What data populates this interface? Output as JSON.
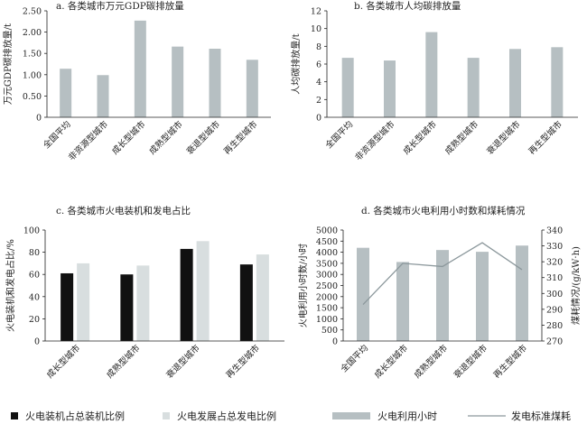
{
  "colors": {
    "bar_gray": "#b6bfc2",
    "bar_black": "#111111",
    "bar_light": "#d8dedf",
    "line_gray": "#8c989c",
    "axis": "#222222"
  },
  "legend": {
    "items": [
      {
        "label": "火电装机占总装机比例",
        "swatch": "black-square"
      },
      {
        "label": "火电发展占总发电比例",
        "swatch": "light-square"
      },
      {
        "label": "火电利用小时",
        "swatch": "gray-rect"
      },
      {
        "label": "发电标准煤耗",
        "swatch": "line"
      }
    ]
  },
  "chart_data": [
    {
      "type": "bar",
      "title": "a. 各类城市万元GDP碳排放量",
      "xlabel": "",
      "ylabel": "万元GDP碳排放量/t",
      "categories": [
        "全国平均",
        "非资源型城市",
        "成长型城市",
        "成熟型城市",
        "衰退型城市",
        "再生型城市"
      ],
      "values": [
        1.14,
        0.99,
        2.27,
        1.66,
        1.61,
        1.35
      ],
      "ylim": [
        0,
        2.5
      ],
      "yticks": [
        "0",
        "0.50",
        "1.00",
        "1.50",
        "2.00",
        "2.50"
      ]
    },
    {
      "type": "bar",
      "title": "b. 各类城市人均碳排放量",
      "xlabel": "",
      "ylabel": "人均碳排放量/t",
      "categories": [
        "全国平均",
        "非资源型城市",
        "成长型城市",
        "成熟型城市",
        "衰退型城市",
        "再生型城市"
      ],
      "values": [
        6.7,
        6.4,
        9.6,
        6.7,
        7.7,
        7.9
      ],
      "ylim": [
        0,
        12
      ],
      "yticks": [
        "0",
        "2",
        "4",
        "6",
        "8",
        "10",
        "12"
      ]
    },
    {
      "type": "bar",
      "title": "c. 各类城市火电装机和发电占比",
      "xlabel": "",
      "ylabel": "火电装机和发电占比/%",
      "categories": [
        "成长型城市",
        "成熟型城市",
        "衰退型城市",
        "再生型城市"
      ],
      "series": [
        {
          "name": "火电装机占总装机比例",
          "values": [
            61,
            60,
            83,
            69
          ]
        },
        {
          "name": "火电发展占总发电比例",
          "values": [
            70,
            68,
            90,
            78
          ]
        }
      ],
      "ylim": [
        0,
        100
      ],
      "yticks": [
        "0",
        "20",
        "40",
        "60",
        "80",
        "100"
      ]
    },
    {
      "type": "bar",
      "title": "d. 各类城市火电利用小时数和煤耗情况",
      "xlabel": "",
      "ylabel": "火电利用小时数/小时",
      "y2label": "煤耗情况/(g/kW·h)",
      "categories": [
        "全国平均",
        "成长型城市",
        "成熟型城市",
        "衰退型城市",
        "再生型城市"
      ],
      "series": [
        {
          "name": "火电利用小时",
          "type": "bar",
          "axis": "left",
          "values": [
            4200,
            3560,
            4100,
            4020,
            4300
          ]
        },
        {
          "name": "发电标准煤耗",
          "type": "line",
          "axis": "right",
          "values": [
            293,
            319,
            317,
            332,
            315
          ]
        }
      ],
      "ylim": [
        0,
        5000
      ],
      "y2lim": [
        270,
        340
      ],
      "yticks": [
        "0",
        "500",
        "1000",
        "1500",
        "2000",
        "2500",
        "3000",
        "3500",
        "4000",
        "4500",
        "5000"
      ],
      "y2ticks": [
        "270",
        "280",
        "290",
        "300",
        "310",
        "320",
        "330",
        "340"
      ]
    }
  ]
}
